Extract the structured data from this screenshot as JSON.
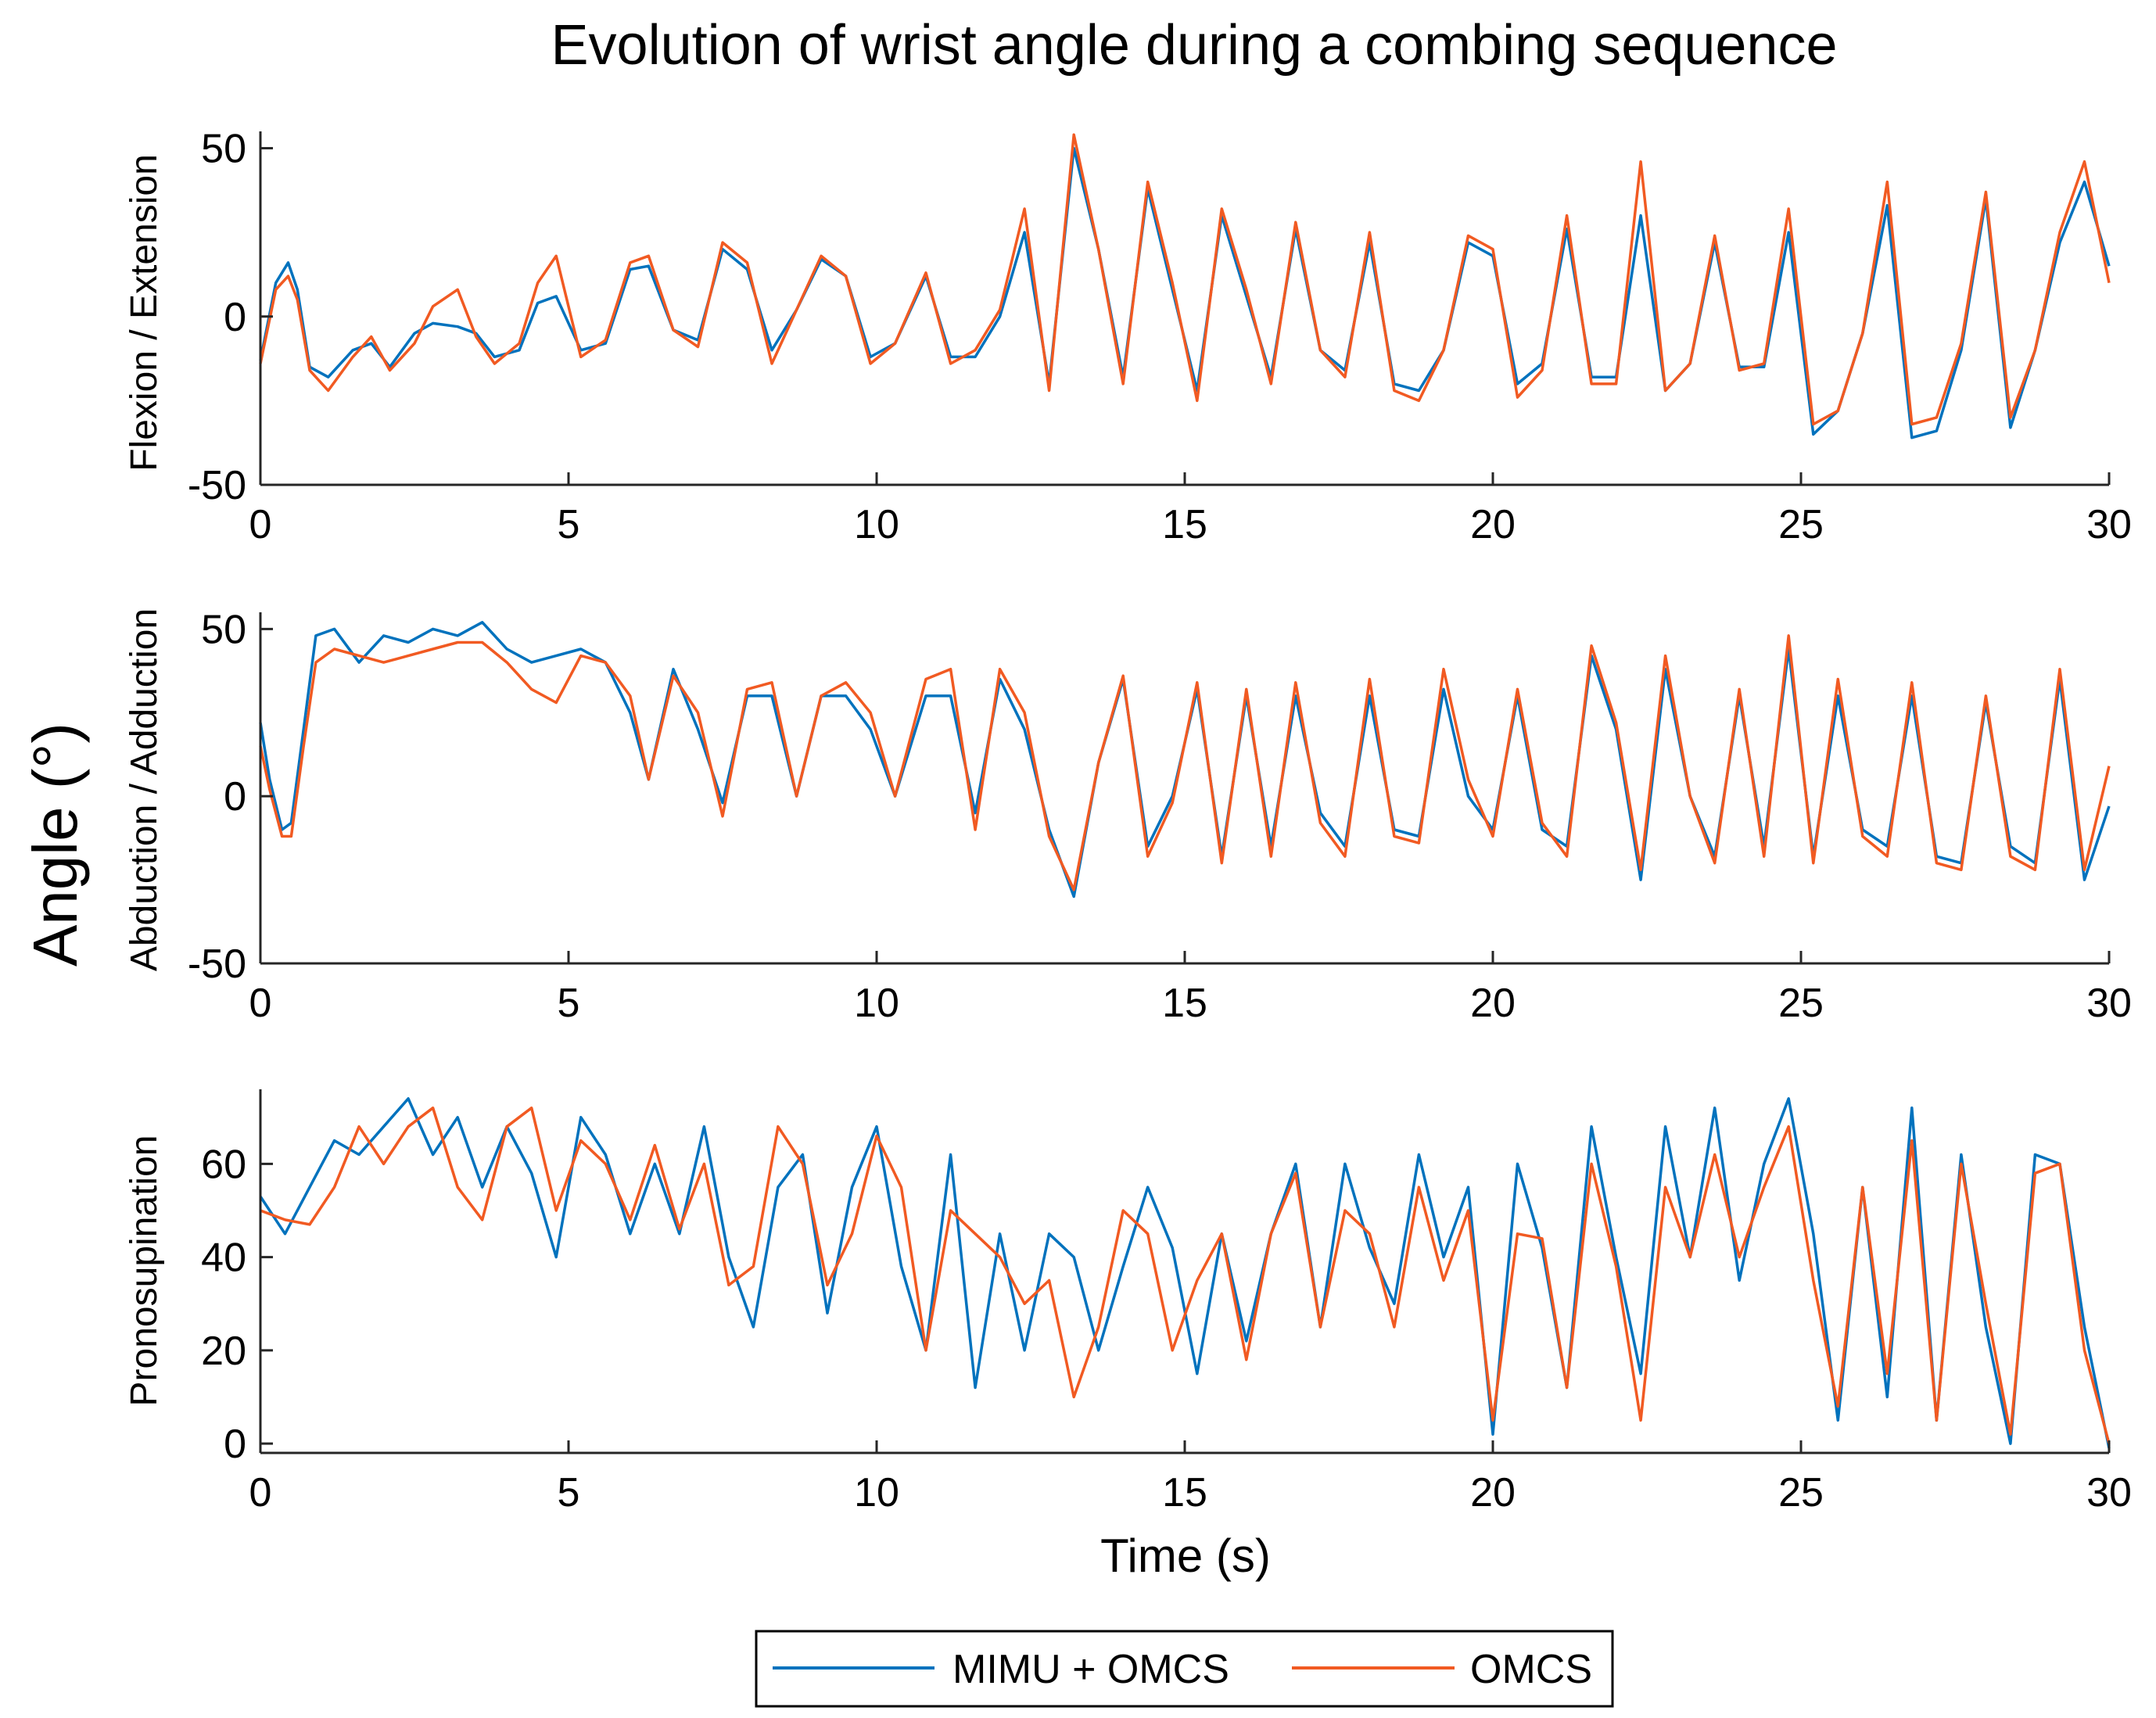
{
  "figure": {
    "title": "Evolution of wrist angle during a combing sequence",
    "shared_ylabel": "Angle (°)",
    "xlabel": "Time (s)",
    "legend": [
      {
        "label": "MIMU + OMCS",
        "color": "#0072BD"
      },
      {
        "label": "OMCS",
        "color": "#F15A22"
      }
    ]
  },
  "chart_data": [
    {
      "type": "line",
      "ylabel": "Flexion / Extension",
      "xlim": [
        0,
        30
      ],
      "ylim": [
        -50,
        55
      ],
      "xticks": [
        0,
        5,
        10,
        15,
        20,
        25,
        30
      ],
      "yticks": [
        -50,
        0,
        50
      ],
      "series": [
        {
          "name": "MIMU + OMCS",
          "color": "#0072BD",
          "x": [
            0,
            0.25,
            0.45,
            0.6,
            0.8,
            1.1,
            1.5,
            1.8,
            2.1,
            2.5,
            2.8,
            3.2,
            3.5,
            3.8,
            4.2,
            4.5,
            4.8,
            5.2,
            5.6,
            6.0,
            6.3,
            6.7,
            7.1,
            7.5,
            7.9,
            8.3,
            8.7,
            9.1,
            9.5,
            9.9,
            10.3,
            10.8,
            11.2,
            11.6,
            12.0,
            12.4,
            12.8,
            13.2,
            13.6,
            14.0,
            14.4,
            14.8,
            15.2,
            15.6,
            16.0,
            16.4,
            16.8,
            17.2,
            17.6,
            18.0,
            18.4,
            18.8,
            19.2,
            19.6,
            20.0,
            20.4,
            20.8,
            21.2,
            21.6,
            22.0,
            22.4,
            22.8,
            23.2,
            23.6,
            24.0,
            24.4,
            24.8,
            25.2,
            25.6,
            26.0,
            26.4,
            26.8,
            27.2,
            27.6,
            28.0,
            28.4,
            28.8,
            29.2,
            29.6,
            30.0
          ],
          "values": [
            -13,
            10,
            16,
            8,
            -15,
            -18,
            -10,
            -8,
            -15,
            -5,
            -2,
            -3,
            -5,
            -12,
            -10,
            4,
            6,
            -10,
            -8,
            14,
            15,
            -4,
            -7,
            20,
            14,
            -10,
            2,
            17,
            12,
            -12,
            -8,
            12,
            -12,
            -12,
            0,
            25,
            -20,
            50,
            20,
            -18,
            38,
            8,
            -22,
            30,
            6,
            -18,
            26,
            -10,
            -16,
            22,
            -20,
            -22,
            -10,
            22,
            18,
            -20,
            -14,
            26,
            -18,
            -18,
            30,
            -22,
            -14,
            22,
            -15,
            -15,
            25,
            -35,
            -28,
            -5,
            33,
            -36,
            -34,
            -10,
            35,
            -33,
            -10,
            22,
            40,
            15
          ]
        },
        {
          "name": "OMCS",
          "color": "#F15A22",
          "x": [
            0,
            0.25,
            0.45,
            0.6,
            0.8,
            1.1,
            1.5,
            1.8,
            2.1,
            2.5,
            2.8,
            3.2,
            3.5,
            3.8,
            4.2,
            4.5,
            4.8,
            5.2,
            5.6,
            6.0,
            6.3,
            6.7,
            7.1,
            7.5,
            7.9,
            8.3,
            8.7,
            9.1,
            9.5,
            9.9,
            10.3,
            10.8,
            11.2,
            11.6,
            12.0,
            12.4,
            12.8,
            13.2,
            13.6,
            14.0,
            14.4,
            14.8,
            15.2,
            15.6,
            16.0,
            16.4,
            16.8,
            17.2,
            17.6,
            18.0,
            18.4,
            18.8,
            19.2,
            19.6,
            20.0,
            20.4,
            20.8,
            21.2,
            21.6,
            22.0,
            22.4,
            22.8,
            23.2,
            23.6,
            24.0,
            24.4,
            24.8,
            25.2,
            25.6,
            26.0,
            26.4,
            26.8,
            27.2,
            27.6,
            28.0,
            28.4,
            28.8,
            29.2,
            29.6,
            30.0
          ],
          "values": [
            -14,
            8,
            12,
            5,
            -16,
            -22,
            -12,
            -6,
            -16,
            -8,
            3,
            8,
            -6,
            -14,
            -8,
            10,
            18,
            -12,
            -7,
            16,
            18,
            -4,
            -9,
            22,
            16,
            -14,
            2,
            18,
            12,
            -14,
            -8,
            13,
            -14,
            -10,
            2,
            32,
            -22,
            54,
            20,
            -20,
            40,
            10,
            -25,
            32,
            8,
            -20,
            28,
            -10,
            -18,
            25,
            -22,
            -25,
            -10,
            24,
            20,
            -24,
            -16,
            30,
            -20,
            -20,
            46,
            -22,
            -14,
            24,
            -16,
            -14,
            32,
            -32,
            -28,
            -5,
            40,
            -32,
            -30,
            -8,
            37,
            -30,
            -10,
            25,
            46,
            10
          ]
        }
      ]
    },
    {
      "type": "line",
      "ylabel": "Abduction / Adduction",
      "xlim": [
        0,
        30
      ],
      "ylim": [
        -50,
        55
      ],
      "xticks": [
        0,
        5,
        10,
        15,
        20,
        25,
        30
      ],
      "yticks": [
        -50,
        0,
        50
      ],
      "series": [
        {
          "name": "MIMU + OMCS",
          "color": "#0072BD",
          "x": [
            0,
            0.15,
            0.35,
            0.5,
            0.7,
            0.9,
            1.2,
            1.6,
            2.0,
            2.4,
            2.8,
            3.2,
            3.6,
            4.0,
            4.4,
            4.8,
            5.2,
            5.6,
            6.0,
            6.3,
            6.7,
            7.1,
            7.5,
            7.9,
            8.3,
            8.7,
            9.1,
            9.5,
            9.9,
            10.3,
            10.8,
            11.2,
            11.6,
            12.0,
            12.4,
            12.8,
            13.2,
            13.6,
            14.0,
            14.4,
            14.8,
            15.2,
            15.6,
            16.0,
            16.4,
            16.8,
            17.2,
            17.6,
            18.0,
            18.4,
            18.8,
            19.2,
            19.6,
            20.0,
            20.4,
            20.8,
            21.2,
            21.6,
            22.0,
            22.4,
            22.8,
            23.2,
            23.6,
            24.0,
            24.4,
            24.8,
            25.2,
            25.6,
            26.0,
            26.4,
            26.8,
            27.2,
            27.6,
            28.0,
            28.4,
            28.8,
            29.2,
            29.6,
            30.0
          ],
          "values": [
            22,
            5,
            -10,
            -8,
            20,
            48,
            50,
            40,
            48,
            46,
            50,
            48,
            52,
            44,
            40,
            42,
            44,
            40,
            25,
            5,
            38,
            20,
            -2,
            30,
            30,
            0,
            30,
            30,
            20,
            0,
            30,
            30,
            -5,
            35,
            20,
            -10,
            -30,
            10,
            35,
            -15,
            0,
            32,
            -18,
            30,
            -15,
            30,
            -5,
            -15,
            30,
            -10,
            -12,
            32,
            0,
            -10,
            30,
            -10,
            -15,
            42,
            20,
            -25,
            38,
            0,
            -18,
            30,
            -15,
            44,
            -18,
            30,
            -10,
            -15,
            30,
            -18,
            -20,
            28,
            -15,
            -20,
            35,
            -25,
            -3
          ]
        },
        {
          "name": "OMCS",
          "color": "#F15A22",
          "x": [
            0,
            0.15,
            0.35,
            0.5,
            0.7,
            0.9,
            1.2,
            1.6,
            2.0,
            2.4,
            2.8,
            3.2,
            3.6,
            4.0,
            4.4,
            4.8,
            5.2,
            5.6,
            6.0,
            6.3,
            6.7,
            7.1,
            7.5,
            7.9,
            8.3,
            8.7,
            9.1,
            9.5,
            9.9,
            10.3,
            10.8,
            11.2,
            11.6,
            12.0,
            12.4,
            12.8,
            13.2,
            13.6,
            14.0,
            14.4,
            14.8,
            15.2,
            15.6,
            16.0,
            16.4,
            16.8,
            17.2,
            17.6,
            18.0,
            18.4,
            18.8,
            19.2,
            19.6,
            20.0,
            20.4,
            20.8,
            21.2,
            21.6,
            22.0,
            22.4,
            22.8,
            23.2,
            23.6,
            24.0,
            24.4,
            24.8,
            25.2,
            25.6,
            26.0,
            26.4,
            26.8,
            27.2,
            27.6,
            28.0,
            28.4,
            28.8,
            29.2,
            29.6,
            30.0
          ],
          "values": [
            15,
            2,
            -12,
            -12,
            15,
            40,
            44,
            42,
            40,
            42,
            44,
            46,
            46,
            40,
            32,
            28,
            42,
            40,
            30,
            5,
            36,
            25,
            -6,
            32,
            34,
            0,
            30,
            34,
            25,
            0,
            35,
            38,
            -10,
            38,
            25,
            -12,
            -28,
            10,
            36,
            -18,
            -2,
            34,
            -20,
            32,
            -18,
            34,
            -8,
            -18,
            35,
            -12,
            -14,
            38,
            5,
            -12,
            32,
            -8,
            -18,
            45,
            22,
            -22,
            42,
            0,
            -20,
            32,
            -18,
            48,
            -20,
            35,
            -12,
            -18,
            34,
            -20,
            -22,
            30,
            -18,
            -22,
            38,
            -22,
            9
          ]
        }
      ]
    },
    {
      "type": "line",
      "ylabel": "Pronosupination",
      "xlim": [
        0,
        30
      ],
      "ylim": [
        -2,
        76
      ],
      "xticks": [
        0,
        5,
        10,
        15,
        20,
        25,
        30
      ],
      "yticks": [
        0,
        20,
        40,
        60
      ],
      "series": [
        {
          "name": "MIMU + OMCS",
          "color": "#0072BD",
          "x": [
            0,
            0.4,
            0.8,
            1.2,
            1.6,
            2.0,
            2.4,
            2.8,
            3.2,
            3.6,
            4.0,
            4.4,
            4.8,
            5.2,
            5.6,
            6.0,
            6.4,
            6.8,
            7.2,
            7.6,
            8.0,
            8.4,
            8.8,
            9.2,
            9.6,
            10.0,
            10.4,
            10.8,
            11.2,
            11.6,
            12.0,
            12.4,
            12.8,
            13.2,
            13.6,
            14.0,
            14.4,
            14.8,
            15.2,
            15.6,
            16.0,
            16.4,
            16.8,
            17.2,
            17.6,
            18.0,
            18.4,
            18.8,
            19.2,
            19.6,
            20.0,
            20.4,
            20.8,
            21.2,
            21.6,
            22.0,
            22.4,
            22.8,
            23.2,
            23.6,
            24.0,
            24.4,
            24.8,
            25.2,
            25.6,
            26.0,
            26.4,
            26.8,
            27.2,
            27.6,
            28.0,
            28.4,
            28.8,
            29.2,
            29.6,
            30.0
          ],
          "values": [
            53,
            45,
            55,
            65,
            62,
            68,
            74,
            62,
            70,
            55,
            68,
            58,
            40,
            70,
            62,
            45,
            60,
            45,
            68,
            40,
            25,
            55,
            62,
            28,
            55,
            68,
            38,
            20,
            62,
            12,
            45,
            20,
            45,
            40,
            20,
            38,
            55,
            42,
            15,
            45,
            22,
            45,
            60,
            25,
            60,
            42,
            30,
            62,
            40,
            55,
            2,
            60,
            42,
            12,
            68,
            40,
            15,
            68,
            40,
            72,
            35,
            60,
            74,
            45,
            5,
            55,
            10,
            72,
            5,
            62,
            25,
            0,
            62,
            60,
            25,
            -1
          ]
        },
        {
          "name": "OMCS",
          "color": "#F15A22",
          "x": [
            0,
            0.4,
            0.8,
            1.2,
            1.6,
            2.0,
            2.4,
            2.8,
            3.2,
            3.6,
            4.0,
            4.4,
            4.8,
            5.2,
            5.6,
            6.0,
            6.4,
            6.8,
            7.2,
            7.6,
            8.0,
            8.4,
            8.8,
            9.2,
            9.6,
            10.0,
            10.4,
            10.8,
            11.2,
            11.6,
            12.0,
            12.4,
            12.8,
            13.2,
            13.6,
            14.0,
            14.4,
            14.8,
            15.2,
            15.6,
            16.0,
            16.4,
            16.8,
            17.2,
            17.6,
            18.0,
            18.4,
            18.8,
            19.2,
            19.6,
            20.0,
            20.4,
            20.8,
            21.2,
            21.6,
            22.0,
            22.4,
            22.8,
            23.2,
            23.6,
            24.0,
            24.4,
            24.8,
            25.2,
            25.6,
            26.0,
            26.4,
            26.8,
            27.2,
            27.6,
            28.0,
            28.4,
            28.8,
            29.2,
            29.6,
            30.0
          ],
          "values": [
            50,
            48,
            47,
            55,
            68,
            60,
            68,
            72,
            55,
            48,
            68,
            72,
            50,
            65,
            60,
            48,
            64,
            46,
            60,
            34,
            38,
            68,
            60,
            34,
            45,
            66,
            55,
            20,
            50,
            45,
            40,
            30,
            35,
            10,
            25,
            50,
            45,
            20,
            35,
            45,
            18,
            45,
            58,
            25,
            50,
            45,
            25,
            55,
            35,
            50,
            5,
            45,
            44,
            12,
            60,
            38,
            5,
            55,
            40,
            62,
            40,
            55,
            68,
            35,
            8,
            55,
            15,
            65,
            5,
            60,
            30,
            2,
            58,
            60,
            20,
            0
          ]
        }
      ]
    }
  ]
}
